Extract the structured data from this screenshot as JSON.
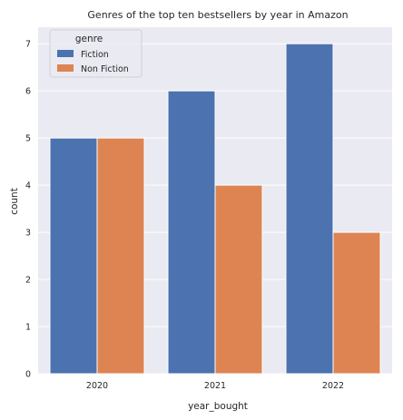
{
  "chart_data": {
    "type": "bar",
    "title": "Genres of the top ten bestsellers by year in Amazon",
    "xlabel": "year_bought",
    "ylabel": "count",
    "categories": [
      "2020",
      "2021",
      "2022"
    ],
    "series": [
      {
        "name": "Fiction",
        "values": [
          5,
          6,
          7
        ],
        "color": "#4c72b0"
      },
      {
        "name": "Non Fiction",
        "values": [
          5,
          4,
          3
        ],
        "color": "#dd8452"
      }
    ],
    "ylim": [
      0,
      7.35
    ],
    "yticks": [
      "0",
      "1",
      "2",
      "3",
      "4",
      "5",
      "6",
      "7"
    ],
    "legend": {
      "title": "genre",
      "position": "top-left"
    },
    "grid": true,
    "colors": {
      "background": "#eaeaf2",
      "grid": "#ffffff"
    }
  }
}
